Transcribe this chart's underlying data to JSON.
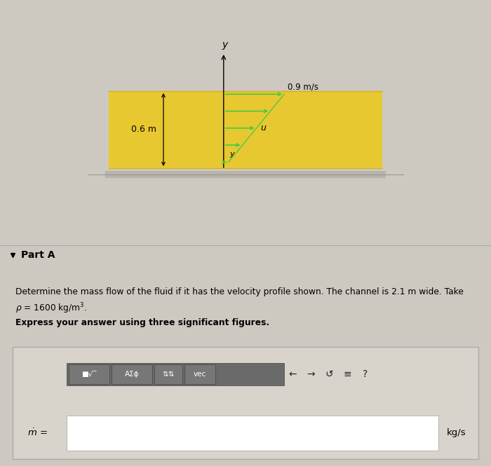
{
  "bg_color": "#cdc9c0",
  "channel_color": "#e8c830",
  "channel_color_dark": "#d4b020",
  "shadow_color": "#b8b4aa",
  "arrow_color": "#50c840",
  "dim_label": "0.6 m",
  "vel_label": "0.9 m/s",
  "vel_u_label": "u",
  "vel_y_label": "y",
  "part_a_text": "Part A",
  "problem_line1": "Determine the mass flow of the fluid if it has the velocity profile shown. The channel is 2.1 m wide. Take",
  "problem_line2": "ρ = 1600 kg/m³.",
  "express_text": "Express your answer using three significant figures.",
  "units_label": "kg/s",
  "outer_box_facecolor": "#d8d4cc",
  "outer_box_edgecolor": "#aaaaaa",
  "toolbar_bg": "#6a6a6a",
  "btn_bg": "#777777",
  "btn_edge": "#444444",
  "input_bg": "#ffffff",
  "input_edge": "#bbbbbb"
}
